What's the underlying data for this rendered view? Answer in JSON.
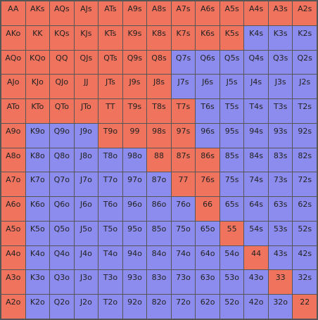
{
  "colors": {
    "raise": "#f0735d",
    "fold": "#8c8cee",
    "grid_line": "#555555",
    "text": "#222222"
  },
  "ranks": [
    "A",
    "K",
    "Q",
    "J",
    "T",
    "9",
    "8",
    "7",
    "6",
    "5",
    "4",
    "3",
    "2"
  ],
  "hands": [
    [
      "AA",
      "AKs",
      "AQs",
      "AJs",
      "ATs",
      "A9s",
      "A8s",
      "A7s",
      "A6s",
      "A5s",
      "A4s",
      "A3s",
      "A2s"
    ],
    [
      "AKo",
      "KK",
      "KQs",
      "KJs",
      "KTs",
      "K9s",
      "K8s",
      "K7s",
      "K6s",
      "K5s",
      "K4s",
      "K3s",
      "K2s"
    ],
    [
      "AQo",
      "KQo",
      "QQ",
      "QJs",
      "QTs",
      "Q9s",
      "Q8s",
      "Q7s",
      "Q6s",
      "Q5s",
      "Q4s",
      "Q3s",
      "Q2s"
    ],
    [
      "AJo",
      "KJo",
      "QJo",
      "JJ",
      "JTs",
      "J9s",
      "J8s",
      "J7s",
      "J6s",
      "J5s",
      "J4s",
      "J3s",
      "J2s"
    ],
    [
      "ATo",
      "KTo",
      "QTo",
      "JTo",
      "TT",
      "T9s",
      "T8s",
      "T7s",
      "T6s",
      "T5s",
      "T4s",
      "T3s",
      "T2s"
    ],
    [
      "A9o",
      "K9o",
      "Q9o",
      "J9o",
      "T9o",
      "99",
      "98s",
      "97s",
      "96s",
      "95s",
      "94s",
      "93s",
      "92s"
    ],
    [
      "A8o",
      "K8o",
      "Q8o",
      "J8o",
      "T8o",
      "98o",
      "88",
      "87s",
      "86s",
      "85s",
      "84s",
      "83s",
      "82s"
    ],
    [
      "A7o",
      "K7o",
      "Q7o",
      "J7o",
      "T7o",
      "97o",
      "87o",
      "77",
      "76s",
      "75s",
      "74s",
      "73s",
      "72s"
    ],
    [
      "A6o",
      "K6o",
      "Q6o",
      "J6o",
      "T6o",
      "96o",
      "86o",
      "76o",
      "66",
      "65s",
      "64s",
      "63s",
      "62s"
    ],
    [
      "A5o",
      "K5o",
      "Q5o",
      "J5o",
      "T5o",
      "95o",
      "85o",
      "75o",
      "65o",
      "55",
      "54s",
      "53s",
      "52s"
    ],
    [
      "A4o",
      "K4o",
      "Q4o",
      "J4o",
      "T4o",
      "94o",
      "84o",
      "74o",
      "64o",
      "54o",
      "44",
      "43s",
      "42s"
    ],
    [
      "A3o",
      "K3o",
      "Q3o",
      "J3o",
      "T3o",
      "93o",
      "83o",
      "73o",
      "63o",
      "53o",
      "43o",
      "33",
      "32s"
    ],
    [
      "A2o",
      "K2o",
      "Q2o",
      "J2o",
      "T2o",
      "92o",
      "82o",
      "72o",
      "62o",
      "52o",
      "42o",
      "32o",
      "22"
    ]
  ],
  "actions": [
    [
      "raise",
      "raise",
      "raise",
      "raise",
      "raise",
      "raise",
      "raise",
      "raise",
      "raise",
      "raise",
      "raise",
      "raise",
      "raise"
    ],
    [
      "raise",
      "raise",
      "raise",
      "raise",
      "raise",
      "raise",
      "raise",
      "raise",
      "raise",
      "raise",
      "fold",
      "fold",
      "fold"
    ],
    [
      "raise",
      "raise",
      "raise",
      "raise",
      "raise",
      "raise",
      "raise",
      "fold",
      "fold",
      "fold",
      "fold",
      "fold",
      "fold"
    ],
    [
      "raise",
      "raise",
      "raise",
      "raise",
      "raise",
      "raise",
      "raise",
      "fold",
      "fold",
      "fold",
      "fold",
      "fold",
      "fold"
    ],
    [
      "raise",
      "raise",
      "raise",
      "raise",
      "raise",
      "raise",
      "raise",
      "raise",
      "fold",
      "fold",
      "fold",
      "fold",
      "fold"
    ],
    [
      "raise",
      "fold",
      "fold",
      "fold",
      "raise",
      "raise",
      "raise",
      "raise",
      "fold",
      "fold",
      "fold",
      "fold",
      "fold"
    ],
    [
      "raise",
      "fold",
      "fold",
      "fold",
      "fold",
      "fold",
      "raise",
      "raise",
      "raise",
      "fold",
      "fold",
      "fold",
      "fold"
    ],
    [
      "raise",
      "fold",
      "fold",
      "fold",
      "fold",
      "fold",
      "fold",
      "raise",
      "raise",
      "fold",
      "fold",
      "fold",
      "fold"
    ],
    [
      "raise",
      "fold",
      "fold",
      "fold",
      "fold",
      "fold",
      "fold",
      "fold",
      "raise",
      "fold",
      "fold",
      "fold",
      "fold"
    ],
    [
      "raise",
      "fold",
      "fold",
      "fold",
      "fold",
      "fold",
      "fold",
      "fold",
      "fold",
      "raise",
      "fold",
      "fold",
      "fold"
    ],
    [
      "raise",
      "fold",
      "fold",
      "fold",
      "fold",
      "fold",
      "fold",
      "fold",
      "fold",
      "fold",
      "raise",
      "fold",
      "fold"
    ],
    [
      "raise",
      "fold",
      "fold",
      "fold",
      "fold",
      "fold",
      "fold",
      "fold",
      "fold",
      "fold",
      "fold",
      "raise",
      "fold"
    ],
    [
      "raise",
      "fold",
      "fold",
      "fold",
      "fold",
      "fold",
      "fold",
      "fold",
      "fold",
      "fold",
      "fold",
      "fold",
      "raise"
    ]
  ]
}
